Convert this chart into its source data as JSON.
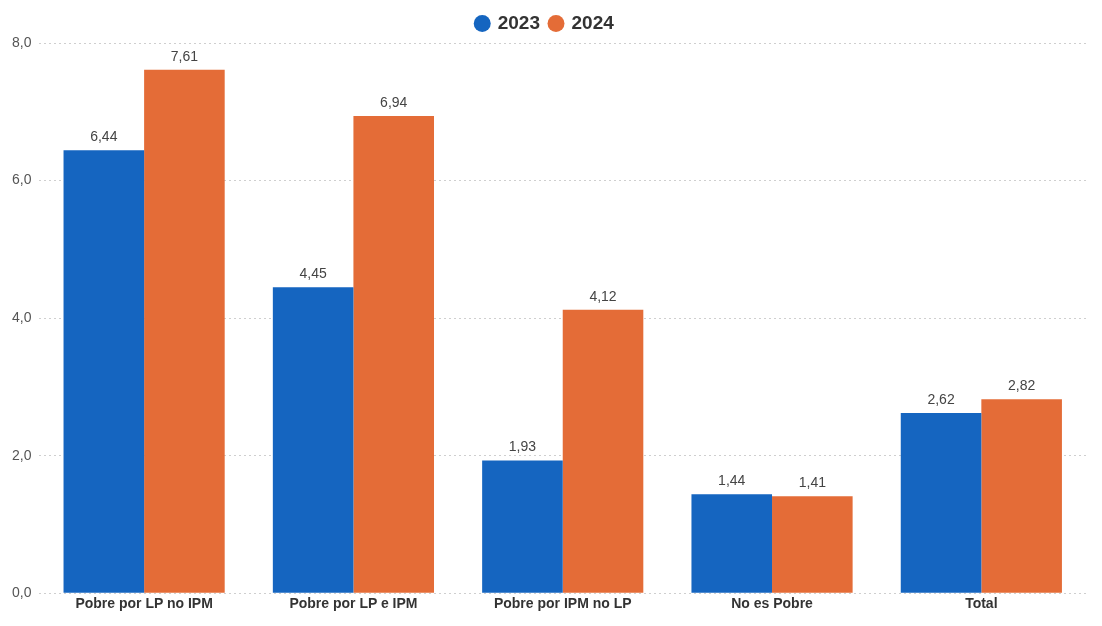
{
  "chart_data": {
    "type": "bar",
    "categories": [
      "Pobre por LP no IPM",
      "Pobre por LP e IPM",
      "Pobre por IPM no LP",
      "No es Pobre",
      "Total"
    ],
    "series": [
      {
        "name": "2023",
        "color": "#1565c0",
        "values": [
          6.44,
          4.45,
          1.93,
          1.44,
          2.62
        ],
        "value_labels": [
          "6,44",
          "4,45",
          "1,93",
          "1,44",
          "2,62"
        ]
      },
      {
        "name": "2024",
        "color": "#e46c37",
        "values": [
          7.61,
          6.94,
          4.12,
          1.41,
          2.82
        ],
        "value_labels": [
          "7,61",
          "6,94",
          "4,12",
          "1,41",
          "2,82"
        ]
      }
    ],
    "ylim": [
      0,
      8
    ],
    "yticks": [
      {
        "value": 0,
        "label": "0,0"
      },
      {
        "value": 2,
        "label": "2,0"
      },
      {
        "value": 4,
        "label": "4,0"
      },
      {
        "value": 6,
        "label": "6,0"
      },
      {
        "value": 8,
        "label": "8,0"
      }
    ],
    "grid": "y",
    "legend": "top",
    "marker": "circle"
  }
}
